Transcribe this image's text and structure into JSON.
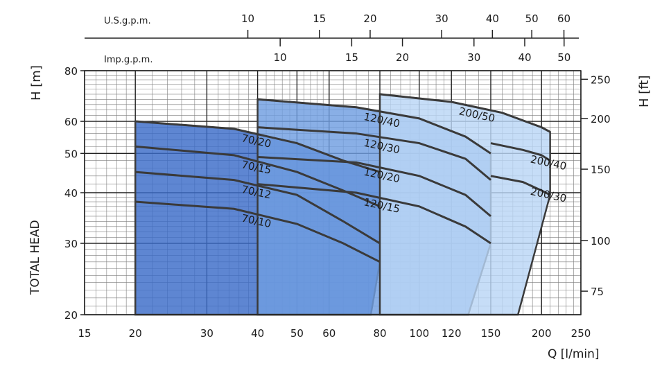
{
  "chart_data": {
    "type": "area",
    "x_axis": {
      "label": "Q [l/min]",
      "scale": "log",
      "range": [
        15,
        250
      ],
      "ticks": [
        15,
        20,
        30,
        40,
        50,
        60,
        80,
        100,
        120,
        150,
        200,
        250
      ]
    },
    "y_axis_left": {
      "label": "H [m]",
      "scale": "log",
      "range": [
        20,
        80
      ],
      "ticks": [
        20,
        30,
        40,
        50,
        60,
        80
      ]
    },
    "y_axis_right": {
      "label": "H [ft]",
      "ticks": [
        75,
        100,
        150,
        200,
        250
      ]
    },
    "y_side_label": "TOTAL HEAD",
    "top_scales": [
      {
        "label": "U.S.g.p.m.",
        "ticks": [
          10,
          15,
          20,
          30,
          40,
          50,
          60
        ]
      },
      {
        "label": "Imp.g.p.m.",
        "ticks": [
          10,
          15,
          20,
          30,
          40,
          50
        ]
      }
    ],
    "grid": true,
    "families": [
      {
        "name": "70",
        "color": "#3a6bc8",
        "q_range": [
          20,
          80
        ],
        "bottom_q_left": 76,
        "bottom_q_right": 80,
        "curves": [
          {
            "label": "70/20",
            "q": [
              20,
              35,
              50,
              65,
              80
            ],
            "h": [
              60,
              57.5,
              53,
              48,
              45
            ]
          },
          {
            "label": "70/15",
            "q": [
              20,
              35,
              50,
              65,
              80
            ],
            "h": [
              52,
              49.5,
              45,
              40.5,
              37
            ]
          },
          {
            "label": "70/12",
            "q": [
              20,
              35,
              50,
              65,
              80
            ],
            "h": [
              45,
              43,
              39.5,
              34,
              30
            ]
          },
          {
            "label": "70/10",
            "q": [
              20,
              35,
              50,
              65,
              80
            ],
            "h": [
              38,
              36.5,
              33.5,
              30,
              27
            ]
          }
        ]
      },
      {
        "name": "120",
        "color": "#6f9ee0",
        "q_range": [
          40,
          150
        ],
        "bottom_q_left": 132,
        "bottom_q_right": 150,
        "curves": [
          {
            "label": "120/40",
            "q": [
              40,
              70,
              100,
              130,
              150
            ],
            "h": [
              68,
              65,
              61,
              55,
              50
            ]
          },
          {
            "label": "120/30",
            "q": [
              40,
              70,
              100,
              130,
              150
            ],
            "h": [
              58,
              56,
              53,
              48.5,
              43
            ]
          },
          {
            "label": "120/20",
            "q": [
              40,
              70,
              100,
              130,
              150
            ],
            "h": [
              49,
              47.5,
              44,
              39.5,
              35
            ]
          },
          {
            "label": "120/15",
            "q": [
              40,
              70,
              100,
              130,
              150
            ],
            "h": [
              42,
              40,
              37,
              33,
              30
            ]
          }
        ]
      },
      {
        "name": "200",
        "color": "#b9d6f5",
        "q_range": [
          80,
          210
        ],
        "bottom_q_left": 175,
        "bottom_q_right": 210,
        "curves": [
          {
            "label": "200/50",
            "q": [
              80,
              120,
              160,
              200,
              210
            ],
            "h": [
              70,
              67,
              63,
              58,
              56.5
            ]
          },
          {
            "label": "200/40",
            "q": [
              150,
              180,
              200,
              210
            ],
            "h": [
              53,
              51,
              49.5,
              48
            ]
          },
          {
            "label": "200/30",
            "q": [
              150,
              180,
              200,
              210
            ],
            "h": [
              44,
              42.5,
              40.5,
              39.5
            ]
          }
        ]
      }
    ]
  }
}
